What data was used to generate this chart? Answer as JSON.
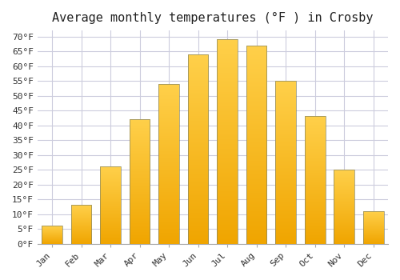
{
  "title": "Average monthly temperatures (°F ) in Crosby",
  "months": [
    "Jan",
    "Feb",
    "Mar",
    "Apr",
    "May",
    "Jun",
    "Jul",
    "Aug",
    "Sep",
    "Oct",
    "Nov",
    "Dec"
  ],
  "values": [
    6,
    13,
    26,
    42,
    54,
    64,
    69,
    67,
    55,
    43,
    25,
    11
  ],
  "bar_color_bottom": "#F0A500",
  "bar_color_top": "#FFD04A",
  "bar_edge_color": "#888866",
  "ylim": [
    0,
    72
  ],
  "yticks": [
    0,
    5,
    10,
    15,
    20,
    25,
    30,
    35,
    40,
    45,
    50,
    55,
    60,
    65,
    70
  ],
  "ylabel_suffix": "°F",
  "background_color": "#ffffff",
  "grid_color": "#ccccdd",
  "title_fontsize": 11
}
